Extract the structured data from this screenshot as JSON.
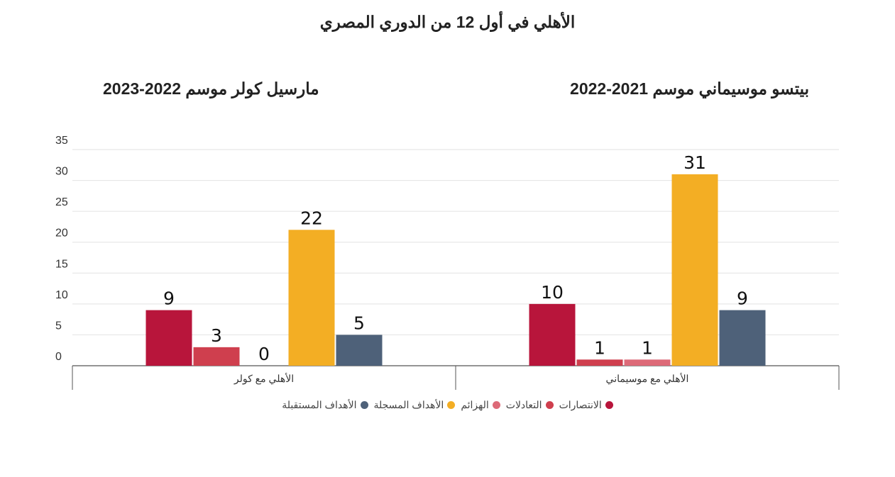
{
  "title": "الأهلي في أول 12 من الدوري المصري",
  "subtitles": {
    "left": "مارسيل كولر موسم 2022-2023",
    "right": "بيتسو موسيماني موسم 2021-2022"
  },
  "colors": {
    "wins": "#b8153b",
    "draws": "#cf3f4e",
    "losses": "#dd6a78",
    "goals_scored": "#f3ae24",
    "goals_conceded": "#4e6179",
    "grid": "#e2e2e2",
    "axis": "#555555"
  },
  "chart_data": {
    "type": "bar",
    "categories": [
      "الأهلي مع كولر",
      "الأهلي مع موسيماني"
    ],
    "series": [
      {
        "name": "الانتصارات",
        "values": [
          9,
          10
        ]
      },
      {
        "name": "التعادلات",
        "values": [
          3,
          1
        ]
      },
      {
        "name": "الهزائم",
        "values": [
          0,
          1
        ]
      },
      {
        "name": "الأهداف المسجلة",
        "values": [
          22,
          31
        ]
      },
      {
        "name": "الأهداف المستقبلة",
        "values": [
          5,
          9
        ]
      }
    ],
    "ylim": [
      0,
      35
    ],
    "yticks": [
      0,
      5,
      10,
      15,
      20,
      25,
      30,
      35
    ],
    "grid": true,
    "legend_position": "bottom-center",
    "data_labels": true
  }
}
